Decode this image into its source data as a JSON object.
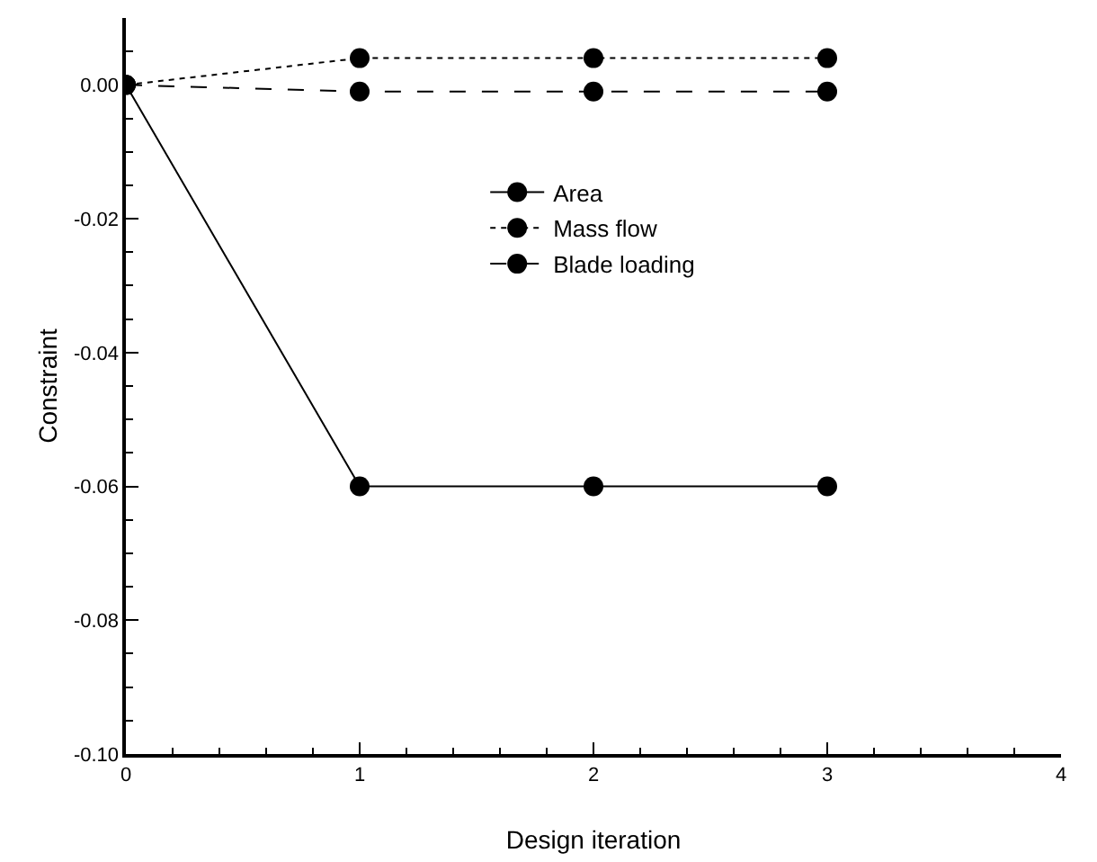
{
  "chart_data": {
    "type": "line",
    "xlabel": "Design iteration",
    "ylabel": "Constraint",
    "x": [
      0,
      1,
      2,
      3
    ],
    "series": [
      {
        "name": "Area",
        "color": "#000000",
        "values": [
          0,
          -0.06,
          -0.06,
          -0.06
        ],
        "line_style": "solid"
      },
      {
        "name": "Mass flow",
        "color": "#000000",
        "values": [
          0,
          0.004,
          0.004,
          0.004
        ],
        "line_style": "dotted"
      },
      {
        "name": "Blade loading",
        "color": "#000000",
        "values": [
          0,
          -0.001,
          -0.001,
          -0.001
        ],
        "line_style": "dashed"
      }
    ],
    "xlim": [
      0,
      4
    ],
    "xticks": [
      0,
      1,
      2,
      3,
      4
    ],
    "ylim": [
      -0.1,
      0.01
    ],
    "yticks": [
      {
        "value": -0.1,
        "label": "-0.10"
      },
      {
        "value": -0.08,
        "label": "-0.08"
      },
      {
        "value": -0.06,
        "label": "-0.06"
      },
      {
        "value": -0.04,
        "label": "-0.04"
      },
      {
        "value": -0.02,
        "label": "-0.02"
      },
      {
        "value": 0,
        "label": "0.00"
      }
    ],
    "marker": "circle",
    "grid": false,
    "legend": "center"
  }
}
